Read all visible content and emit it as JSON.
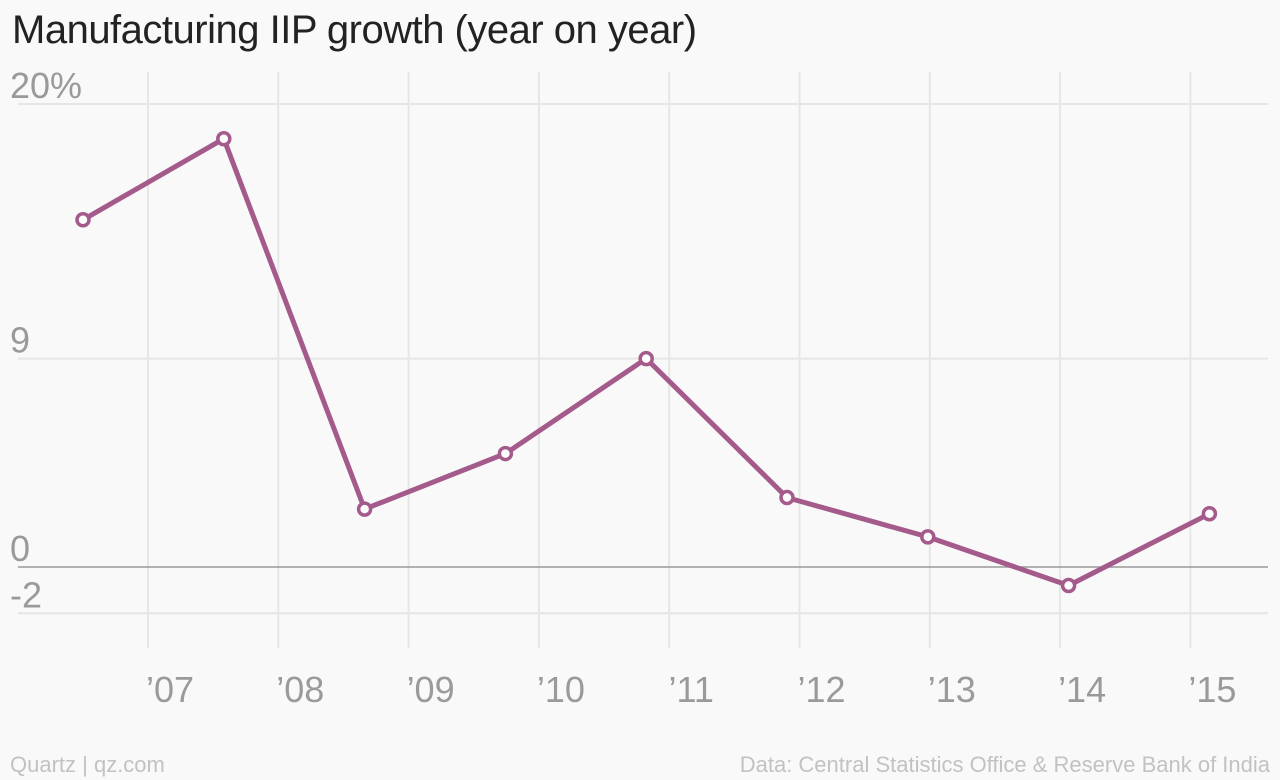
{
  "chart_data": {
    "type": "line",
    "title": "Manufacturing IIP growth (year on year)",
    "xlabel": "",
    "ylabel": "",
    "x_tick_labels": [
      "’07",
      "’08",
      "’09",
      "’10",
      "’11",
      "’12",
      "’13",
      "’14",
      "’15"
    ],
    "y_tick_labels": [
      "20%",
      "9",
      "0",
      "-2"
    ],
    "y_ticks": [
      20,
      9,
      0,
      -2
    ],
    "ylim": [
      -2,
      20
    ],
    "grid": true,
    "legend": "none",
    "series": [
      {
        "color": "#a45a8b",
        "points": [
          {
            "x": 2006.4,
            "y": 15.0
          },
          {
            "x": 2007.5,
            "y": 18.5
          },
          {
            "x": 2008.6,
            "y": 2.5
          },
          {
            "x": 2009.7,
            "y": 4.9
          },
          {
            "x": 2010.8,
            "y": 9.0
          },
          {
            "x": 2011.9,
            "y": 3.0
          },
          {
            "x": 2013.0,
            "y": 1.3
          },
          {
            "x": 2014.1,
            "y": -0.8
          },
          {
            "x": 2015.2,
            "y": 2.3
          }
        ]
      }
    ]
  },
  "footer": {
    "source_left": "Quartz | qz.com",
    "source_right": "Data: Central Statistics Office & Reserve Bank of India"
  },
  "colors": {
    "line": "#a45a8b",
    "grid": "#e6e6e6",
    "zero_line": "#999999",
    "tick_text": "#9a9a9a",
    "title_text": "#222222",
    "footer_text": "#c2c2c2",
    "background": "#f9f9f9"
  }
}
